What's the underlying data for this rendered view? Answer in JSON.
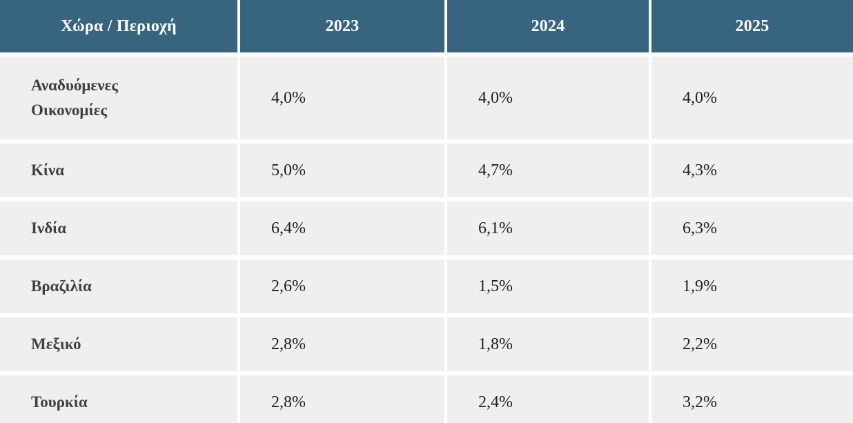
{
  "table": {
    "columns": [
      "Χώρα / Περιοχή",
      "2023",
      "2024",
      "2025"
    ],
    "rows": [
      {
        "label": "Αναδυόμενες Οικονομίες",
        "values": [
          "4,0%",
          "4,0%",
          "4,0%"
        ]
      },
      {
        "label": "Κίνα",
        "values": [
          "5,0%",
          "4,7%",
          "4,3%"
        ]
      },
      {
        "label": "Ινδία",
        "values": [
          "6,4%",
          "6,1%",
          "6,3%"
        ]
      },
      {
        "label": "Βραζιλία",
        "values": [
          "2,6%",
          "1,5%",
          "1,9%"
        ]
      },
      {
        "label": "Μεξικό",
        "values": [
          "2,8%",
          "1,8%",
          "2,2%"
        ]
      },
      {
        "label": "Τουρκία",
        "values": [
          "2,8%",
          "2,4%",
          "3,2%"
        ]
      }
    ],
    "colors": {
      "header_bg": "#376580",
      "header_text": "#ffffff",
      "row_bg": "#f0efef",
      "label_text": "#3f3f3f",
      "value_text": "#212121",
      "gap": "#ffffff"
    }
  },
  "chart_data": {
    "type": "table",
    "categories": [
      "2023",
      "2024",
      "2025"
    ],
    "row_header_label": "Χώρα / Περιοχή",
    "unit": "%",
    "decimal_separator": ",",
    "series": [
      {
        "name": "Αναδυόμενες Οικονομίες",
        "values": [
          4.0,
          4.0,
          4.0
        ]
      },
      {
        "name": "Κίνα",
        "values": [
          5.0,
          4.7,
          4.3
        ]
      },
      {
        "name": "Ινδία",
        "values": [
          6.4,
          6.1,
          6.3
        ]
      },
      {
        "name": "Βραζιλία",
        "values": [
          2.6,
          1.5,
          1.9
        ]
      },
      {
        "name": "Μεξικό",
        "values": [
          2.8,
          1.8,
          2.2
        ]
      },
      {
        "name": "Τουρκία",
        "values": [
          2.8,
          2.4,
          3.2
        ]
      }
    ]
  }
}
